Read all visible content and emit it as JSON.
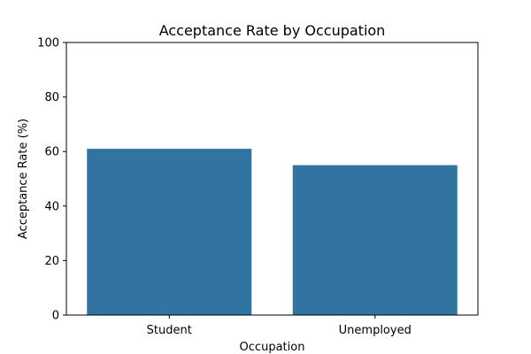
{
  "chart_data": {
    "type": "bar",
    "title": "Acceptance Rate by Occupation",
    "xlabel": "Occupation",
    "ylabel": "Acceptance Rate (%)",
    "categories": [
      "Student",
      "Unemployed"
    ],
    "values": [
      61,
      55
    ],
    "ylim": [
      0,
      100
    ],
    "yticks": [
      0,
      20,
      40,
      60,
      80,
      100
    ],
    "bar_color": "#3274a1",
    "grid": false,
    "legend": "none"
  }
}
